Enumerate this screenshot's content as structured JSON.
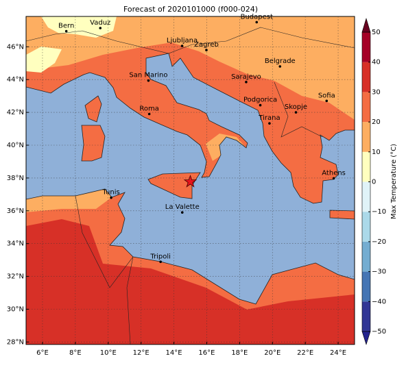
{
  "map": {
    "title": "Forecast of 2020101000 (f000-024)",
    "lonlim": [
      5,
      25
    ],
    "latlim": [
      27.85,
      47.85
    ],
    "lonticks": [
      {
        "value": 6,
        "label": "6°E"
      },
      {
        "value": 8,
        "label": "8°E"
      },
      {
        "value": 10,
        "label": "10°E"
      },
      {
        "value": 12,
        "label": "12°E"
      },
      {
        "value": 14,
        "label": "14°E"
      },
      {
        "value": 16,
        "label": "16°E"
      },
      {
        "value": 18,
        "label": "18°E"
      },
      {
        "value": 20,
        "label": "20°E"
      },
      {
        "value": 22,
        "label": "22°E"
      },
      {
        "value": 24,
        "label": "24°E"
      }
    ],
    "latticks": [
      {
        "value": 28,
        "label": "28°N"
      },
      {
        "value": 30,
        "label": "30°N"
      },
      {
        "value": 32,
        "label": "32°N"
      },
      {
        "value": 34,
        "label": "34°N"
      },
      {
        "value": 36,
        "label": "36°N"
      },
      {
        "value": 38,
        "label": "38°N"
      },
      {
        "value": 40,
        "label": "40°N"
      },
      {
        "value": 42,
        "label": "42°N"
      },
      {
        "value": 44,
        "label": "44°N"
      },
      {
        "value": 46,
        "label": "46°N"
      }
    ],
    "grid": true,
    "cities": [
      {
        "name": "Bern",
        "lon": 7.45,
        "lat": 46.95
      },
      {
        "name": "Vaduz",
        "lon": 9.52,
        "lat": 47.14
      },
      {
        "name": "Budapest",
        "lon": 19.04,
        "lat": 47.5
      },
      {
        "name": "Ljubljana",
        "lon": 14.5,
        "lat": 46.05
      },
      {
        "name": "Zagreb",
        "lon": 15.98,
        "lat": 45.8
      },
      {
        "name": "Belgrade",
        "lon": 20.46,
        "lat": 44.8
      },
      {
        "name": "San Marino",
        "lon": 12.45,
        "lat": 43.94
      },
      {
        "name": "Sarajevo",
        "lon": 18.4,
        "lat": 43.85
      },
      {
        "name": "Sofia",
        "lon": 23.3,
        "lat": 42.7
      },
      {
        "name": "Podgorica",
        "lon": 19.26,
        "lat": 42.44
      },
      {
        "name": "Skopje",
        "lon": 21.43,
        "lat": 42.0
      },
      {
        "name": "Roma",
        "lon": 12.5,
        "lat": 41.9
      },
      {
        "name": "Tirana",
        "lon": 19.82,
        "lat": 41.33
      },
      {
        "name": "Athens",
        "lon": 23.73,
        "lat": 37.98
      },
      {
        "name": "Tunis",
        "lon": 10.18,
        "lat": 36.8
      },
      {
        "name": "La Valette",
        "lon": 14.51,
        "lat": 35.9
      },
      {
        "name": "Tripoli",
        "lon": 13.19,
        "lat": 32.89
      }
    ],
    "star": {
      "lon": 15,
      "lat": 37.77,
      "color": "#e8141c"
    },
    "colorbar": {
      "label": "Max Temperature (°C)",
      "lim": [
        -50,
        50
      ],
      "colors": [
        "#313695",
        "#4575b4",
        "#74add1",
        "#abd9e9",
        "#e0f3f8",
        "#ffffbf",
        "#fdae61",
        "#f46d43",
        "#d73027",
        "#a50026"
      ],
      "under": "#23238e",
      "over": "#67001f",
      "ticks": [
        {
          "value": -50,
          "label": "−50"
        },
        {
          "value": -40,
          "label": "−40"
        },
        {
          "value": -30,
          "label": "−30"
        },
        {
          "value": -20,
          "label": "−20"
        },
        {
          "value": -10,
          "label": "−10"
        },
        0,
        10,
        20,
        30,
        40,
        50
      ]
    }
  }
}
